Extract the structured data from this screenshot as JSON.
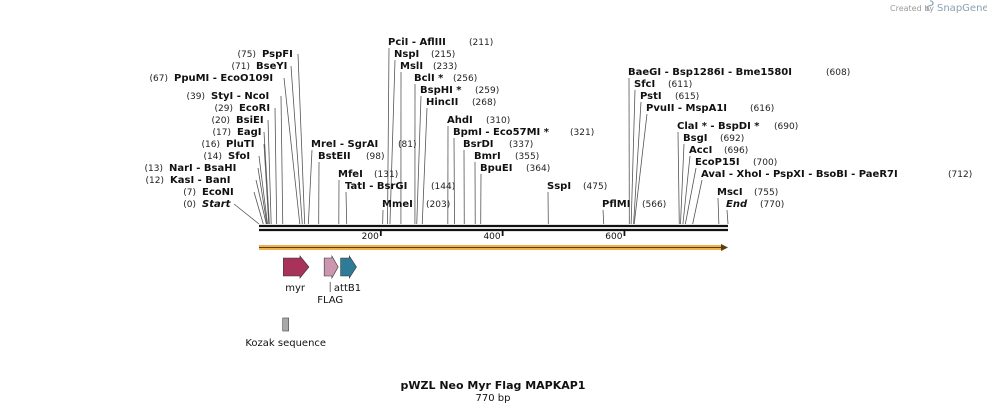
{
  "credit": {
    "created_by": "Created by",
    "brand": "SnapGene"
  },
  "map": {
    "title": "pWZL Neo Myr Flag MAPKAP1",
    "length_label": "770 bp",
    "length": 770,
    "ticks": [
      {
        "value": 200,
        "label": "200"
      },
      {
        "value": 400,
        "label": "400"
      },
      {
        "value": 600,
        "label": "600"
      }
    ]
  },
  "sites": {
    "left": [
      {
        "pos": 75,
        "pos_label": "(75)",
        "name": "PspFI",
        "italic": false
      },
      {
        "pos": 71,
        "pos_label": "(71)",
        "name": "BseYI",
        "italic": false
      },
      {
        "pos": 67,
        "pos_label": "(67)",
        "name": "PpuMI   - EcoO109I",
        "italic": false
      },
      {
        "pos": 39,
        "pos_label": "(39)",
        "name": "StyI   - NcoI",
        "italic": false
      },
      {
        "pos": 29,
        "pos_label": "(29)",
        "name": "EcoRI",
        "italic": false
      },
      {
        "pos": 20,
        "pos_label": "(20)",
        "name": "BsiEI",
        "italic": false
      },
      {
        "pos": 17,
        "pos_label": "(17)",
        "name": "EagI",
        "italic": false
      },
      {
        "pos": 16,
        "pos_label": "(16)",
        "name": "PluTI",
        "italic": false
      },
      {
        "pos": 14,
        "pos_label": "(14)",
        "name": "SfoI",
        "italic": false
      },
      {
        "pos": 13,
        "pos_label": "(13)",
        "name": "NarI   - BsaHI",
        "italic": false
      },
      {
        "pos": 12,
        "pos_label": "(12)",
        "name": "KasI   - BanI",
        "italic": false
      },
      {
        "pos": 7,
        "pos_label": "(7)",
        "name": "EcoNI",
        "italic": false
      },
      {
        "pos": 0,
        "pos_label": "(0)",
        "name": "Start",
        "italic": true
      }
    ],
    "right": [
      {
        "pos": 211,
        "pos_label": "(211)",
        "name": "PciI   - AflIII",
        "italic": false
      },
      {
        "pos": 215,
        "pos_label": "(215)",
        "name": "NspI",
        "italic": false
      },
      {
        "pos": 233,
        "pos_label": "(233)",
        "name": "MslI",
        "italic": false
      },
      {
        "pos": 256,
        "pos_label": "(256)",
        "name": "BclI *",
        "italic": false
      },
      {
        "pos": 259,
        "pos_label": "(259)",
        "name": "BspHI *",
        "italic": false
      },
      {
        "pos": 268,
        "pos_label": "(268)",
        "name": "HincII",
        "italic": false
      },
      {
        "pos": 81,
        "pos_label": "(81)",
        "name": "MreI   - SgrAI",
        "italic": false
      },
      {
        "pos": 98,
        "pos_label": "(98)",
        "name": "BstEII",
        "italic": false
      },
      {
        "pos": 131,
        "pos_label": "(131)",
        "name": "MfeI",
        "italic": false
      },
      {
        "pos": 144,
        "pos_label": "(144)",
        "name": "TatI   - BsrGI",
        "italic": false
      },
      {
        "pos": 203,
        "pos_label": "(203)",
        "name": "MmeI",
        "italic": false
      },
      {
        "pos": 310,
        "pos_label": "(310)",
        "name": "AhdI",
        "italic": false
      },
      {
        "pos": 321,
        "pos_label": "(321)",
        "name": "BpmI   - Eco57MI *",
        "italic": false
      },
      {
        "pos": 337,
        "pos_label": "(337)",
        "name": "BsrDI",
        "italic": false
      },
      {
        "pos": 355,
        "pos_label": "(355)",
        "name": "BmrI",
        "italic": false
      },
      {
        "pos": 364,
        "pos_label": "(364)",
        "name": "BpuEI",
        "italic": false
      },
      {
        "pos": 475,
        "pos_label": "(475)",
        "name": "SspI",
        "italic": false
      },
      {
        "pos": 566,
        "pos_label": "(566)",
        "name": "PflMI",
        "italic": false
      },
      {
        "pos": 608,
        "pos_label": "(608)",
        "name": "BaeGI   - Bsp1286I   - Bme1580I",
        "italic": false
      },
      {
        "pos": 611,
        "pos_label": "(611)",
        "name": "SfcI",
        "italic": false
      },
      {
        "pos": 615,
        "pos_label": "(615)",
        "name": "PstI",
        "italic": false
      },
      {
        "pos": 616,
        "pos_label": "(616)",
        "name": "PvuII   - MspA1I",
        "italic": false
      },
      {
        "pos": 690,
        "pos_label": "(690)",
        "name": "ClaI *   - BspDI *",
        "italic": false
      },
      {
        "pos": 692,
        "pos_label": "(692)",
        "name": "BsgI",
        "italic": false
      },
      {
        "pos": 696,
        "pos_label": "(696)",
        "name": "AccI",
        "italic": false
      },
      {
        "pos": 700,
        "pos_label": "(700)",
        "name": "EcoP15I",
        "italic": false
      },
      {
        "pos": 712,
        "pos_label": "(712)",
        "name": "AvaI   - XhoI   - PspXI   - BsoBI   - PaeR7I",
        "italic": false
      },
      {
        "pos": 755,
        "pos_label": "(755)",
        "name": "MscI",
        "italic": false
      },
      {
        "pos": 770,
        "pos_label": "(770)",
        "name": "End",
        "italic": true
      }
    ]
  },
  "features": [
    {
      "name": "myr",
      "start": 40,
      "end": 82,
      "color": "#a8325a"
    },
    {
      "name": "FLAG",
      "start": 107,
      "end": 130,
      "color": "#cc96b0"
    },
    {
      "name": "attB1",
      "start": 134,
      "end": 160,
      "color": "#2f7a96"
    },
    {
      "name": "Kozak sequence",
      "start": 34,
      "end": 44,
      "color": "#a9a9a9"
    }
  ],
  "orf": {
    "color": "#f0b24c"
  }
}
